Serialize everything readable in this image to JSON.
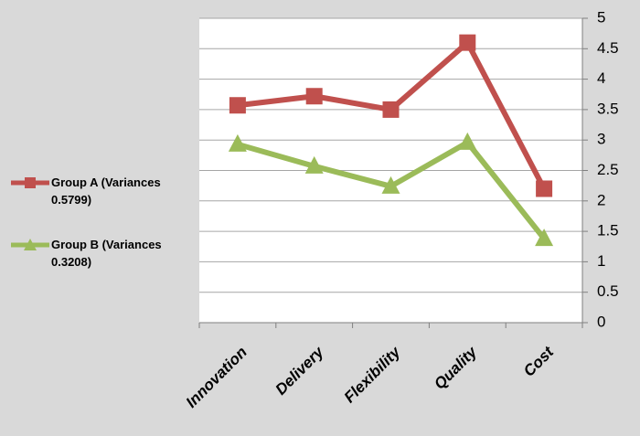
{
  "chart_data": {
    "type": "line",
    "categories": [
      "Innovation",
      "Delivery",
      "Flexibility",
      "Quality",
      "Cost"
    ],
    "series": [
      {
        "name": "Group A (Variances 0.5799)",
        "color": "#c0504d",
        "marker": "square",
        "values": [
          3.57,
          3.72,
          3.5,
          4.6,
          2.2
        ]
      },
      {
        "name": "Group B (Variances 0.3208)",
        "color": "#9bbb59",
        "marker": "triangle",
        "values": [
          2.93,
          2.57,
          2.24,
          2.96,
          1.38
        ]
      }
    ],
    "ylim": [
      0,
      5
    ],
    "yticks": [
      0,
      0.5,
      1,
      1.5,
      2,
      2.5,
      3,
      3.5,
      4,
      4.5,
      5
    ],
    "y_axis_side": "right",
    "grid": true,
    "legend": "left"
  }
}
